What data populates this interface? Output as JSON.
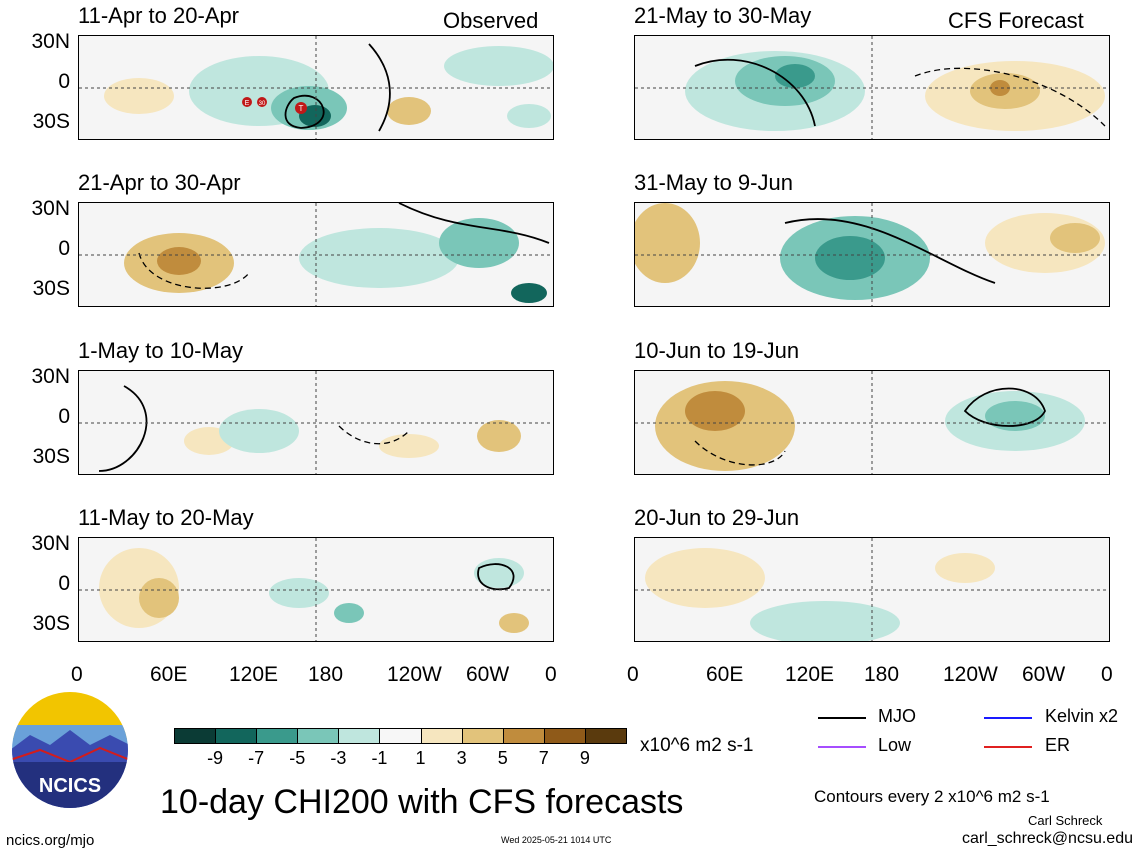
{
  "panels_left": {
    "header_right": "Observed",
    "titles": [
      "11-Apr to 20-Apr",
      "21-Apr to 30-Apr",
      "1-May to 10-May",
      "11-May to 20-May"
    ]
  },
  "panels_right": {
    "header_right": "CFS Forecast",
    "titles": [
      "21-May to 30-May",
      "31-May to 9-Jun",
      "10-Jun to 19-Jun",
      "20-Jun to 29-Jun"
    ]
  },
  "lat_labels": [
    "30N",
    "0",
    "30S"
  ],
  "lon_labels": [
    "0",
    "60E",
    "120E",
    "180",
    "120W",
    "60W",
    "0"
  ],
  "storm_markers": [
    "E",
    "30",
    "T"
  ],
  "colorbar": {
    "labels": [
      "-9",
      "-7",
      "-5",
      "-3",
      "-1",
      "1",
      "3",
      "5",
      "7",
      "9"
    ],
    "units": "x10^6 m2 s-1",
    "colors": [
      "#0b3b35",
      "#12665c",
      "#3a9a8c",
      "#7ac6b8",
      "#bfe6de",
      "#f7f7f7",
      "#f6e6bf",
      "#e2c37b",
      "#c08c3d",
      "#8f5a19",
      "#5a3a0d"
    ]
  },
  "legend": {
    "mjo": "MJO",
    "kelvin": "Kelvin x2",
    "low": "Low",
    "er": "ER",
    "colors": {
      "mjo": "#000000",
      "kelvin": "#1a1aff",
      "low": "#a64dff",
      "er": "#e02020"
    }
  },
  "footer": {
    "title": "10-day CHI200 with CFS forecasts",
    "contours": "Contours every 2 x10^6 m2 s-1",
    "author": "Carl Schreck",
    "email": "carl_schreck@ncsu.edu",
    "website": "ncics.org/mjo",
    "timestamp": "Wed 2025-05-21 1014 UTC",
    "logo_text": "NCICS"
  }
}
